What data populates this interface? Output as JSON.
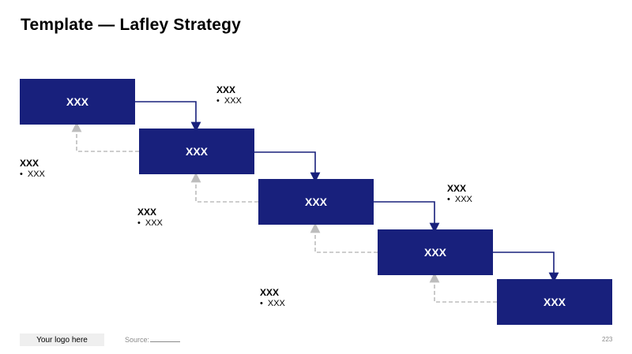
{
  "title": "Template — Lafley Strategy",
  "boxes": [
    "XXX",
    "XXX",
    "XXX",
    "XXX",
    "XXX"
  ],
  "notes": [
    {
      "heading": "XXX",
      "bullet": "XXX"
    },
    {
      "heading": "XXX",
      "bullet": "XXX"
    },
    {
      "heading": "XXX",
      "bullet": "XXX"
    },
    {
      "heading": "XXX",
      "bullet": "XXX"
    },
    {
      "heading": "XXX",
      "bullet": "XXX"
    }
  ],
  "footer": {
    "logo": "Your logo here",
    "source_label": "Source:",
    "page_number": "223"
  },
  "colors": {
    "box": "#18207c",
    "forward_arrow": "#18207c",
    "feedback_arrow": "#bdbdbd"
  }
}
